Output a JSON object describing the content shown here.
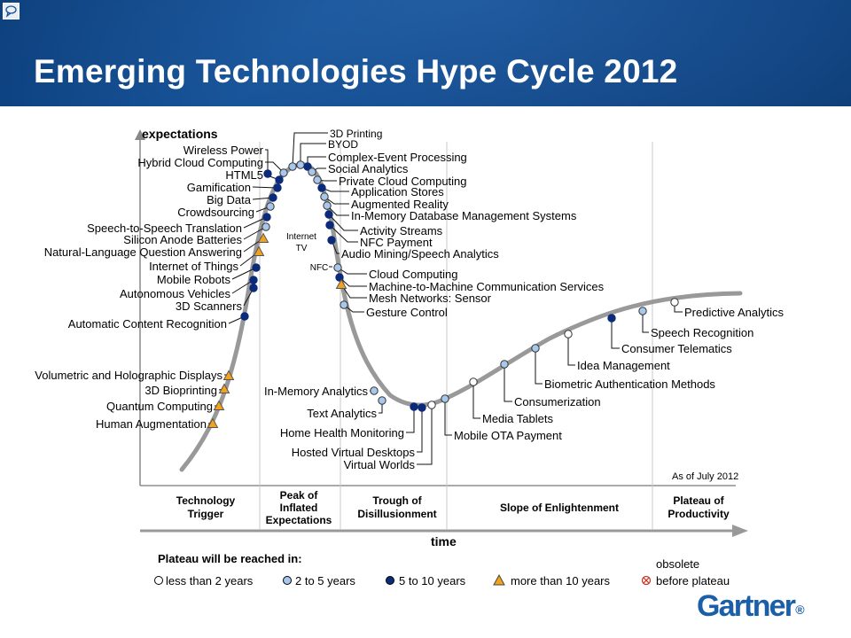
{
  "slide": {
    "title": "Emerging Technologies Hype Cycle 2012"
  },
  "axes": {
    "y_label": "expectations",
    "x_label": "time"
  },
  "as_of": "As of July 2012",
  "phases": [
    [
      "Technology",
      "Trigger"
    ],
    [
      "Peak of",
      "Inflated",
      "Expectations"
    ],
    [
      "Trough of",
      "Disillusionment"
    ],
    [
      "Slope of Enlightenment"
    ],
    [
      "Plateau of",
      "Productivity"
    ]
  ],
  "legend": {
    "title": "Plateau will be reached in:",
    "items": [
      "less than 2 years",
      "2 to 5 years",
      "5 to 10 years",
      "more than 10 years"
    ],
    "obsolete_line1": "obsolete",
    "obsolete_line2": "before plateau"
  },
  "brand": {
    "logo": "Gartner"
  },
  "colors": {
    "lt2": "#ffffff",
    "y2to5": "#a7c8ec",
    "y5to10": "#0c2a7a",
    "gt10": "#f2a21d",
    "curve": "#999999"
  },
  "technologies": [
    {
      "name": "3D Printing",
      "cat": "y2to5"
    },
    {
      "name": "BYOD",
      "cat": "y2to5"
    },
    {
      "name": "Wireless Power",
      "cat": "y5to10"
    },
    {
      "name": "Complex-Event Processing",
      "cat": "y5to10"
    },
    {
      "name": "Hybrid Cloud Computing",
      "cat": "y2to5"
    },
    {
      "name": "Social Analytics",
      "cat": "y2to5"
    },
    {
      "name": "HTML5",
      "cat": "y5to10"
    },
    {
      "name": "Private Cloud Computing",
      "cat": "y2to5"
    },
    {
      "name": "Gamification",
      "cat": "y5to10"
    },
    {
      "name": "Application Stores",
      "cat": "y5to10"
    },
    {
      "name": "Big Data",
      "cat": "y5to10"
    },
    {
      "name": "Augmented Reality",
      "cat": "y2to5"
    },
    {
      "name": "Crowdsourcing",
      "cat": "y2to5"
    },
    {
      "name": "In-Memory Database Management Systems",
      "cat": "y2to5"
    },
    {
      "name": "Speech-to-Speech Translation",
      "cat": "y5to10"
    },
    {
      "name": "Activity Streams",
      "cat": "y5to10"
    },
    {
      "name": "Silicon Anode Batteries",
      "cat": "y2to5"
    },
    {
      "name": "NFC Payment",
      "cat": "y5to10"
    },
    {
      "name": "Natural-Language Question Answering",
      "cat": "gt10"
    },
    {
      "name": "Audio Mining/Speech Analytics",
      "cat": "y5to10"
    },
    {
      "name": "Internet of Things",
      "cat": "gt10"
    },
    {
      "name": "Cloud Computing",
      "cat": "y2to5"
    },
    {
      "name": "Mobile Robots",
      "cat": "y5to10"
    },
    {
      "name": "Machine-to-Machine Communication Services",
      "cat": "y5to10"
    },
    {
      "name": "Autonomous Vehicles",
      "cat": "y5to10"
    },
    {
      "name": "Mesh Networks: Sensor",
      "cat": "gt10"
    },
    {
      "name": "3D Scanners",
      "cat": "y5to10"
    },
    {
      "name": "Gesture Control",
      "cat": "y2to5"
    },
    {
      "name": "Automatic Content Recognition",
      "cat": "y5to10"
    },
    {
      "name": "Predictive Analytics",
      "cat": "lt2"
    },
    {
      "name": "Speech Recognition",
      "cat": "y2to5"
    },
    {
      "name": "Consumer Telematics",
      "cat": "y5to10"
    },
    {
      "name": "Idea Management",
      "cat": "lt2"
    },
    {
      "name": "Biometric Authentication Methods",
      "cat": "y2to5"
    },
    {
      "name": "Volumetric and Holographic Displays",
      "cat": "gt10"
    },
    {
      "name": "Consumerization",
      "cat": "y2to5"
    },
    {
      "name": "3D Bioprinting",
      "cat": "gt10"
    },
    {
      "name": "In-Memory Analytics",
      "cat": "y2to5"
    },
    {
      "name": "Quantum Computing",
      "cat": "gt10"
    },
    {
      "name": "Text Analytics",
      "cat": "y2to5"
    },
    {
      "name": "Media Tablets",
      "cat": "lt2"
    },
    {
      "name": "Human Augmentation",
      "cat": "gt10"
    },
    {
      "name": "Home Health Monitoring",
      "cat": "y5to10"
    },
    {
      "name": "Mobile OTA Payment",
      "cat": "y2to5"
    },
    {
      "name": "Hosted Virtual Desktops",
      "cat": "y5to10"
    },
    {
      "name": "Virtual Worlds",
      "cat": "lt2"
    },
    {
      "name": "Internet TV",
      "cat": "y5to10"
    },
    {
      "name": "NFC",
      "cat": "y2to5"
    }
  ]
}
